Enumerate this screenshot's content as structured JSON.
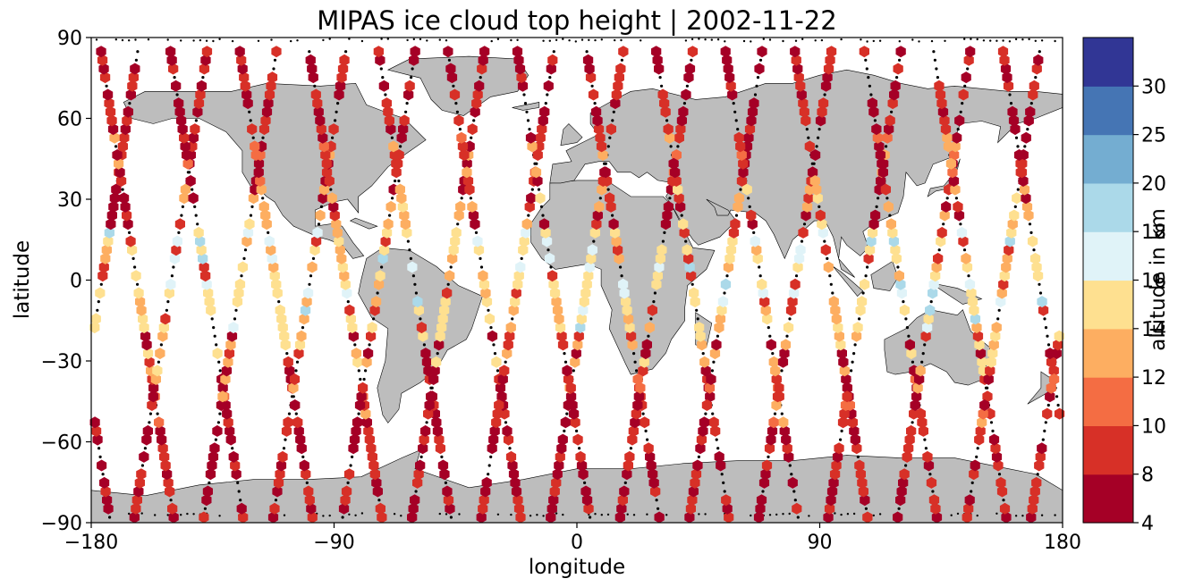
{
  "chart_data": {
    "type": "scatter",
    "title": "MIPAS ice cloud top height | 2002-11-22",
    "xlabel": "longitude",
    "ylabel": "latitude",
    "xlim": [
      -180,
      180
    ],
    "ylim": [
      -90,
      90
    ],
    "xticks": [
      -180,
      -90,
      0,
      90,
      180
    ],
    "yticks": [
      -90,
      -60,
      -30,
      0,
      30,
      60,
      90
    ],
    "xtick_labels": [
      "−180",
      "−90",
      "0",
      "90",
      "180"
    ],
    "ytick_labels": [
      "−90",
      "−60",
      "−30",
      "0",
      "30",
      "60",
      "90"
    ],
    "grid": false,
    "background_map": "world land masses (grey, black coastlines)",
    "land_color": "#bdbdbd",
    "colorbar": {
      "label": "altitude in km",
      "boundaries": [
        4,
        8,
        10,
        12,
        14,
        16,
        18,
        20,
        25,
        30
      ],
      "tick_labels": [
        "4",
        "8",
        "10",
        "12",
        "14",
        "16",
        "18",
        "20",
        "25",
        "30"
      ],
      "colors": [
        "#a50026",
        "#d73027",
        "#f46d43",
        "#fdae61",
        "#fee090",
        "#e0f3f8",
        "#abd9e9",
        "#74add1",
        "#4575b4",
        "#313695"
      ]
    },
    "series": [
      {
        "track_start_lon": -178,
        "color_bin": 1,
        "points": [
          [
            -178,
            89
          ],
          [
            -176,
            77
          ],
          [
            -176,
            70
          ],
          [
            -175,
            62
          ],
          [
            -173,
            50
          ],
          [
            -172,
            38
          ],
          [
            -171,
            26
          ],
          [
            -172,
            17
          ],
          [
            -174,
            8
          ],
          [
            -176,
            -1
          ],
          [
            -177,
            -10
          ],
          [
            -178,
            -20
          ],
          [
            -178,
            -30
          ],
          [
            -179,
            -40
          ]
        ]
      },
      {
        "track_start_lon": -160,
        "color_bin": 1,
        "points": [
          [
            -160,
            -84
          ],
          [
            -159,
            -73
          ],
          [
            -158,
            -62
          ],
          [
            -157,
            -52
          ],
          [
            -156,
            -42
          ],
          [
            -155,
            -33
          ],
          [
            -154,
            -26
          ],
          [
            -155,
            -17
          ],
          [
            -156,
            -8
          ],
          [
            -158,
            1
          ]
        ]
      },
      {
        "track_start_lon": -150,
        "color_bin": 1,
        "points": [
          [
            -150,
            88
          ],
          [
            -149,
            81
          ],
          [
            -148,
            71
          ],
          [
            -147,
            62
          ],
          [
            -146,
            53
          ],
          [
            -145,
            45
          ],
          [
            -144,
            36
          ],
          [
            -143,
            27
          ],
          [
            -143,
            18
          ],
          [
            -144,
            10
          ],
          [
            -146,
            1
          ]
        ]
      }
    ],
    "color_counts_note": "hexagon markers of retrieved cloud-top altitude along satellite orbit tracks"
  }
}
